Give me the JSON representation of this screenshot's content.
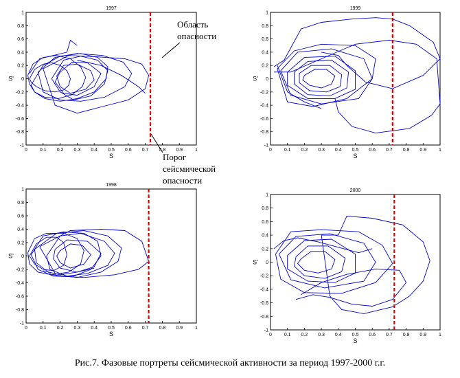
{
  "caption": "Рис.7. Фазовые портреты сейсмической активности за период 1997-2000 г.г.",
  "annotations": {
    "danger_zone_line1": "Область",
    "danger_zone_line2": "опасности",
    "threshold_line1": "Порог",
    "threshold_line2": "сейсмической",
    "threshold_line3": "опасности"
  },
  "colors": {
    "trajectory": "#0000cc",
    "threshold": "#dd0000",
    "axes": "#000000"
  },
  "chart_data": [
    {
      "type": "line",
      "title": "1997",
      "xlabel": "S",
      "ylabel": "S'",
      "xlim": [
        0,
        1
      ],
      "ylim": [
        -1,
        1
      ],
      "xticks": [
        "0",
        "0.1",
        "0.2",
        "0.3",
        "0.4",
        "0.5",
        "0.6",
        "0.7",
        "0.8",
        "0.9",
        "1"
      ],
      "yticks": [
        "1",
        "0.8",
        "0.6",
        "0.4",
        "0.2",
        "0",
        "-0.2",
        "-0.4",
        "-0.6",
        "-0.8",
        "-1"
      ],
      "threshold_x": 0.73,
      "series": [
        {
          "x": [
            0.02,
            0.05,
            0.1,
            0.15,
            0.2,
            0.24,
            0.26,
            0.25,
            0.22,
            0.17,
            0.11,
            0.06,
            0.03,
            0.02
          ],
          "y": [
            0.0,
            0.14,
            0.22,
            0.24,
            0.2,
            0.12,
            0.0,
            -0.1,
            -0.17,
            -0.2,
            -0.18,
            -0.12,
            -0.05,
            0.0
          ]
        },
        {
          "x": [
            0.01,
            0.04,
            0.1,
            0.18,
            0.26,
            0.32,
            0.35,
            0.33,
            0.27,
            0.19,
            0.11,
            0.05,
            0.02,
            0.01
          ],
          "y": [
            0.05,
            0.22,
            0.32,
            0.35,
            0.3,
            0.18,
            0.02,
            -0.12,
            -0.24,
            -0.3,
            -0.28,
            -0.2,
            -0.08,
            0.05
          ]
        },
        {
          "x": [
            0.04,
            0.1,
            0.2,
            0.32,
            0.42,
            0.48,
            0.47,
            0.4,
            0.3,
            0.2,
            0.11,
            0.05,
            0.03,
            0.04
          ],
          "y": [
            -0.05,
            0.2,
            0.34,
            0.38,
            0.32,
            0.18,
            0.0,
            -0.2,
            -0.3,
            -0.34,
            -0.3,
            -0.2,
            -0.1,
            -0.05
          ]
        },
        {
          "x": [
            0.07,
            0.17,
            0.3,
            0.45,
            0.57,
            0.62,
            0.58,
            0.46,
            0.32,
            0.2,
            0.1,
            0.07
          ],
          "y": [
            0.1,
            0.32,
            0.38,
            0.35,
            0.25,
            0.08,
            -0.12,
            -0.28,
            -0.34,
            -0.32,
            -0.2,
            0.1
          ]
        },
        {
          "x": [
            0.1,
            0.25,
            0.42,
            0.58,
            0.68,
            0.72,
            0.7,
            0.6,
            0.45,
            0.3,
            0.17,
            0.1
          ],
          "y": [
            0.15,
            0.35,
            0.33,
            0.3,
            0.22,
            0.05,
            -0.15,
            -0.32,
            -0.42,
            -0.52,
            -0.4,
            0.15
          ]
        },
        {
          "x": [
            0.22,
            0.3,
            0.38,
            0.4,
            0.35,
            0.26,
            0.2,
            0.18,
            0.22
          ],
          "y": [
            0.2,
            0.22,
            0.12,
            -0.02,
            -0.16,
            -0.22,
            -0.12,
            0.04,
            0.2
          ]
        },
        {
          "x": [
            0.2,
            0.27,
            0.36,
            0.44,
            0.4,
            0.3,
            0.22,
            0.17,
            0.2
          ],
          "y": [
            0.1,
            0.25,
            0.24,
            0.08,
            -0.12,
            -0.25,
            -0.22,
            -0.05,
            0.1
          ]
        },
        {
          "x": [
            0.15,
            0.22,
            0.32,
            0.42,
            0.48,
            0.46,
            0.38,
            0.28,
            0.2,
            0.15
          ],
          "y": [
            0.0,
            0.28,
            0.34,
            0.28,
            0.12,
            -0.08,
            -0.26,
            -0.32,
            -0.2,
            0.0
          ]
        },
        {
          "x": [
            0.3,
            0.44,
            0.56,
            0.66,
            0.7
          ],
          "y": [
            0.28,
            0.2,
            0.05,
            -0.12,
            -0.22
          ]
        },
        {
          "x": [
            0.02,
            0.08,
            0.16,
            0.24,
            0.26,
            0.3
          ],
          "y": [
            0.08,
            0.3,
            0.35,
            0.4,
            0.58,
            0.5
          ]
        }
      ]
    },
    {
      "type": "line",
      "title": "1999",
      "xlabel": "S",
      "ylabel": "S'",
      "xlim": [
        0,
        1
      ],
      "ylim": [
        -1,
        1
      ],
      "xticks": [
        "0",
        "0.1",
        "0.2",
        "0.3",
        "0.4",
        "0.5",
        "0.6",
        "0.7",
        "0.8",
        "0.9",
        "1"
      ],
      "yticks": [
        "1",
        "0.8",
        "0.6",
        "0.4",
        "0.2",
        "0",
        "-0.2",
        "-0.4",
        "-0.6",
        "-0.8",
        "-1"
      ],
      "threshold_x": 0.72,
      "series": [
        {
          "x": [
            0.2,
            0.26,
            0.33,
            0.38,
            0.36,
            0.3,
            0.23,
            0.19,
            0.2
          ],
          "y": [
            0.05,
            0.14,
            0.14,
            0.04,
            -0.08,
            -0.14,
            -0.1,
            -0.02,
            0.05
          ]
        },
        {
          "x": [
            0.17,
            0.24,
            0.35,
            0.42,
            0.41,
            0.33,
            0.23,
            0.17,
            0.17
          ],
          "y": [
            0.08,
            0.2,
            0.2,
            0.06,
            -0.12,
            -0.2,
            -0.18,
            -0.06,
            0.08
          ]
        },
        {
          "x": [
            0.14,
            0.22,
            0.36,
            0.46,
            0.45,
            0.35,
            0.22,
            0.14,
            0.14
          ],
          "y": [
            0.1,
            0.26,
            0.28,
            0.1,
            -0.14,
            -0.26,
            -0.24,
            -0.08,
            0.1
          ]
        },
        {
          "x": [
            0.1,
            0.2,
            0.38,
            0.5,
            0.5,
            0.38,
            0.22,
            0.1,
            0.1
          ],
          "y": [
            0.1,
            0.32,
            0.34,
            0.12,
            -0.16,
            -0.3,
            -0.3,
            -0.1,
            0.1
          ]
        },
        {
          "x": [
            0.06,
            0.16,
            0.36,
            0.55,
            0.6,
            0.52,
            0.3,
            0.12,
            0.06
          ],
          "y": [
            0.12,
            0.4,
            0.45,
            0.3,
            0.0,
            -0.3,
            -0.38,
            -0.25,
            0.12
          ]
        },
        {
          "x": [
            0.04,
            0.14,
            0.3,
            0.5,
            0.62,
            0.6,
            0.45,
            0.25,
            0.1,
            0.04
          ],
          "y": [
            0.15,
            0.42,
            0.52,
            0.5,
            0.3,
            0.0,
            -0.3,
            -0.42,
            -0.35,
            0.15
          ]
        },
        {
          "x": [
            0.02,
            0.08,
            0.18,
            0.3,
            0.48,
            0.62,
            0.72,
            0.82,
            0.96,
            1.0,
            0.9,
            0.72,
            0.56,
            0.45,
            0.4,
            0.3
          ],
          "y": [
            0.18,
            0.28,
            0.75,
            0.85,
            0.9,
            0.92,
            0.9,
            0.8,
            0.55,
            0.3,
            0.05,
            -0.15,
            -0.05,
            0.2,
            0.35,
            0.4
          ]
        },
        {
          "x": [
            0.02,
            0.12,
            0.3,
            0.5,
            0.7,
            0.86,
            0.98,
            1.0,
            0.95,
            0.82,
            0.62,
            0.48,
            0.4,
            0.38
          ],
          "y": [
            0.1,
            0.1,
            0.3,
            0.52,
            0.58,
            0.52,
            0.3,
            -0.38,
            -0.55,
            -0.75,
            -0.82,
            -0.72,
            -0.5,
            -0.3
          ]
        },
        {
          "x": [
            0.04,
            0.1,
            0.2,
            0.3
          ],
          "y": [
            0.2,
            -0.2,
            -0.35,
            -0.45
          ]
        }
      ]
    },
    {
      "type": "line",
      "title": "1998",
      "xlabel": "S",
      "ylabel": "S'",
      "xlim": [
        0,
        1
      ],
      "ylim": [
        -1,
        1
      ],
      "xticks": [
        "0",
        "0.1",
        "0.2",
        "0.3",
        "0.4",
        "0.5",
        "0.6",
        "0.7",
        "0.8",
        "0.9",
        "1"
      ],
      "yticks": [
        "1",
        "0.8",
        "0.6",
        "0.4",
        "0.2",
        "0",
        "-0.2",
        "-0.4",
        "-0.6",
        "-0.8",
        "-1"
      ],
      "threshold_x": 0.72,
      "series": [
        {
          "x": [
            0.02,
            0.06,
            0.12,
            0.18,
            0.22,
            0.24,
            0.22,
            0.16,
            0.1,
            0.05,
            0.02
          ],
          "y": [
            0.0,
            0.18,
            0.28,
            0.28,
            0.2,
            0.02,
            -0.14,
            -0.22,
            -0.2,
            -0.12,
            0.0
          ]
        },
        {
          "x": [
            0.01,
            0.05,
            0.12,
            0.22,
            0.3,
            0.34,
            0.32,
            0.25,
            0.15,
            0.07,
            0.02,
            0.01
          ],
          "y": [
            0.05,
            0.26,
            0.34,
            0.34,
            0.26,
            0.08,
            -0.12,
            -0.24,
            -0.28,
            -0.24,
            -0.12,
            0.05
          ]
        },
        {
          "x": [
            0.03,
            0.1,
            0.22,
            0.34,
            0.42,
            0.44,
            0.38,
            0.28,
            0.16,
            0.07,
            0.03
          ],
          "y": [
            0.02,
            0.3,
            0.36,
            0.34,
            0.22,
            0.0,
            -0.2,
            -0.3,
            -0.3,
            -0.2,
            0.02
          ]
        },
        {
          "x": [
            0.05,
            0.18,
            0.34,
            0.48,
            0.56,
            0.54,
            0.44,
            0.3,
            0.15,
            0.06,
            0.05
          ],
          "y": [
            0.1,
            0.34,
            0.38,
            0.3,
            0.12,
            -0.08,
            -0.24,
            -0.32,
            -0.28,
            -0.1,
            0.1
          ]
        },
        {
          "x": [
            0.08,
            0.26,
            0.44,
            0.58,
            0.68,
            0.72,
            0.66,
            0.52,
            0.34,
            0.18,
            0.08
          ],
          "y": [
            0.14,
            0.38,
            0.4,
            0.38,
            0.22,
            -0.08,
            -0.2,
            -0.28,
            -0.32,
            -0.3,
            0.14
          ]
        },
        {
          "x": [
            0.2,
            0.26,
            0.33,
            0.38,
            0.34,
            0.26,
            0.2,
            0.18,
            0.2
          ],
          "y": [
            0.08,
            0.18,
            0.16,
            0.02,
            -0.12,
            -0.18,
            -0.1,
            0.0,
            0.08
          ]
        },
        {
          "x": [
            0.17,
            0.24,
            0.36,
            0.44,
            0.4,
            0.3,
            0.2,
            0.16,
            0.17
          ],
          "y": [
            0.1,
            0.24,
            0.22,
            0.04,
            -0.16,
            -0.24,
            -0.18,
            -0.04,
            0.1
          ]
        },
        {
          "x": [
            0.12,
            0.2,
            0.32,
            0.46,
            0.52,
            0.48,
            0.36,
            0.24,
            0.14,
            0.12
          ],
          "y": [
            0.0,
            0.3,
            0.34,
            0.22,
            0.04,
            -0.14,
            -0.26,
            -0.3,
            -0.2,
            0.0
          ]
        },
        {
          "x": [
            0.1,
            0.2,
            0.3,
            0.4
          ],
          "y": [
            -0.22,
            -0.28,
            -0.24,
            -0.18
          ]
        }
      ]
    },
    {
      "type": "line",
      "title": "2000",
      "xlabel": "S",
      "ylabel": "S'",
      "xlim": [
        0,
        1
      ],
      "ylim": [
        -1,
        1
      ],
      "xticks": [
        "0",
        "0.1",
        "0.2",
        "0.3",
        "0.4",
        "0.5",
        "0.6",
        "0.7",
        "0.8",
        "0.9",
        "1"
      ],
      "yticks": [
        "1",
        "0.8",
        "0.6",
        "0.4",
        "0.2",
        "0",
        "-0.2",
        "-0.4",
        "-0.6",
        "-0.8",
        "-1"
      ],
      "threshold_x": 0.73,
      "series": [
        {
          "x": [
            0.18,
            0.24,
            0.32,
            0.38,
            0.36,
            0.28,
            0.2,
            0.16,
            0.18
          ],
          "y": [
            0.05,
            0.16,
            0.16,
            0.04,
            -0.1,
            -0.16,
            -0.12,
            -0.02,
            0.05
          ]
        },
        {
          "x": [
            0.15,
            0.22,
            0.34,
            0.44,
            0.42,
            0.32,
            0.2,
            0.14,
            0.15
          ],
          "y": [
            0.08,
            0.24,
            0.24,
            0.06,
            -0.14,
            -0.24,
            -0.2,
            -0.06,
            0.08
          ]
        },
        {
          "x": [
            0.1,
            0.2,
            0.36,
            0.5,
            0.5,
            0.38,
            0.22,
            0.1,
            0.1
          ],
          "y": [
            0.1,
            0.32,
            0.34,
            0.12,
            -0.16,
            -0.3,
            -0.28,
            -0.1,
            0.1
          ]
        },
        {
          "x": [
            0.05,
            0.15,
            0.35,
            0.55,
            0.62,
            0.55,
            0.32,
            0.12,
            0.05
          ],
          "y": [
            0.12,
            0.38,
            0.42,
            0.28,
            0.0,
            -0.28,
            -0.38,
            -0.26,
            0.12
          ]
        },
        {
          "x": [
            0.03,
            0.12,
            0.3,
            0.52,
            0.66,
            0.72,
            0.62,
            0.42,
            0.2,
            0.06,
            0.03
          ],
          "y": [
            0.12,
            0.45,
            0.48,
            0.45,
            0.25,
            -0.02,
            -0.3,
            -0.46,
            -0.45,
            -0.25,
            0.12
          ]
        },
        {
          "x": [
            0.3,
            0.4,
            0.45,
            0.6,
            0.78,
            0.9,
            0.94,
            0.9,
            0.82,
            0.72,
            0.55,
            0.42,
            0.35,
            0.3
          ],
          "y": [
            0.4,
            0.4,
            0.68,
            0.65,
            0.55,
            0.3,
            0.02,
            -0.28,
            -0.5,
            -0.66,
            -0.76,
            -0.7,
            -0.5,
            0.4
          ]
        },
        {
          "x": [
            0.15,
            0.25,
            0.35,
            0.48,
            0.6,
            0.72,
            0.8,
            0.76,
            0.62,
            0.45,
            0.3,
            0.18
          ],
          "y": [
            -0.55,
            -0.48,
            -0.52,
            -0.62,
            -0.65,
            -0.55,
            -0.3,
            -0.12,
            -0.1,
            -0.18,
            -0.3,
            -0.48
          ]
        },
        {
          "x": [
            0.02,
            0.08,
            0.16,
            0.28,
            0.4,
            0.52,
            0.6
          ],
          "y": [
            0.2,
            0.32,
            0.36,
            0.3,
            0.22,
            0.14,
            0.2
          ]
        }
      ]
    }
  ]
}
